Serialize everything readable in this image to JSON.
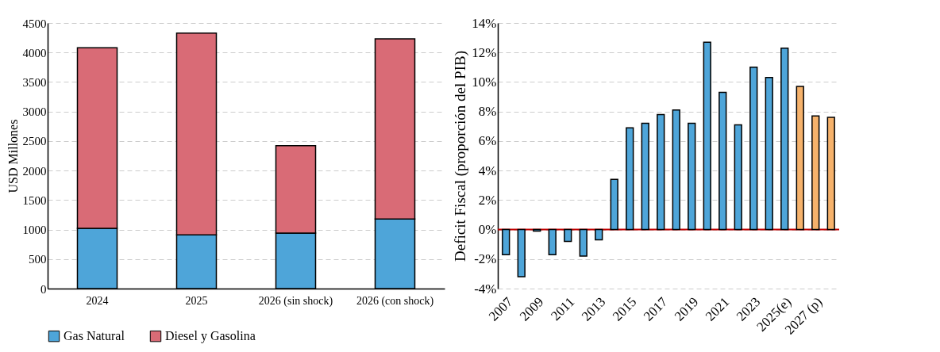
{
  "chart_data": [
    {
      "type": "bar",
      "stacked": true,
      "ylabel": "USD Millones",
      "categories": [
        "2024",
        "2025",
        "2026 (sin shock)",
        "2026 (con shock)"
      ],
      "series": [
        {
          "name": "Gas Natural",
          "color": "#4ea5d9",
          "values": [
            1020,
            910,
            940,
            1180
          ]
        },
        {
          "name": "Diesel y Gasolina",
          "color": "#d96b76",
          "values": [
            3060,
            3420,
            1480,
            3050
          ]
        }
      ],
      "ylim": [
        0,
        4500
      ],
      "yticks": [
        0,
        500,
        1000,
        1500,
        2000,
        2500,
        3000,
        3500,
        4000,
        4500
      ],
      "grid": "y",
      "legend": "bottom"
    },
    {
      "type": "bar",
      "ylabel": "Deficit Fiscal (proporción del PIB)",
      "categories": [
        "2007",
        null,
        "2009",
        null,
        "2011",
        null,
        "2013",
        null,
        "2015",
        null,
        "2017",
        null,
        "2019",
        null,
        "2021",
        null,
        "2023",
        null,
        "2025(e)",
        null,
        "2027 (p)",
        null
      ],
      "values": [
        -1.7,
        -3.2,
        -0.1,
        -1.7,
        -0.8,
        -1.8,
        -0.7,
        3.4,
        6.9,
        7.2,
        7.8,
        8.1,
        7.2,
        12.7,
        9.3,
        7.1,
        11.0,
        10.3,
        12.3,
        9.7,
        7.7,
        7.6
      ],
      "colors": [
        "#4ea5d9",
        "#4ea5d9",
        "#4ea5d9",
        "#4ea5d9",
        "#4ea5d9",
        "#4ea5d9",
        "#4ea5d9",
        "#4ea5d9",
        "#4ea5d9",
        "#4ea5d9",
        "#4ea5d9",
        "#4ea5d9",
        "#4ea5d9",
        "#4ea5d9",
        "#4ea5d9",
        "#4ea5d9",
        "#4ea5d9",
        "#4ea5d9",
        "#4ea5d9",
        "#f6b26b",
        "#f6b26b",
        "#f6b26b"
      ],
      "ylim": [
        -4,
        14
      ],
      "yticks": [
        {
          "value": -4,
          "label": "-4%"
        },
        {
          "value": -2,
          "label": "-2%"
        },
        {
          "value": 0,
          "label": "0%"
        },
        {
          "value": 2,
          "label": "2%"
        },
        {
          "value": 4,
          "label": "4%"
        },
        {
          "value": 6,
          "label": "6%"
        },
        {
          "value": 8,
          "label": "8%"
        },
        {
          "value": 10,
          "label": "10%"
        },
        {
          "value": 12,
          "label": "12%"
        },
        {
          "value": 14,
          "label": "14%"
        }
      ],
      "ref_lines": [
        {
          "axis": "y",
          "value": 0,
          "color": "#c00000"
        }
      ],
      "grid": "y"
    }
  ]
}
